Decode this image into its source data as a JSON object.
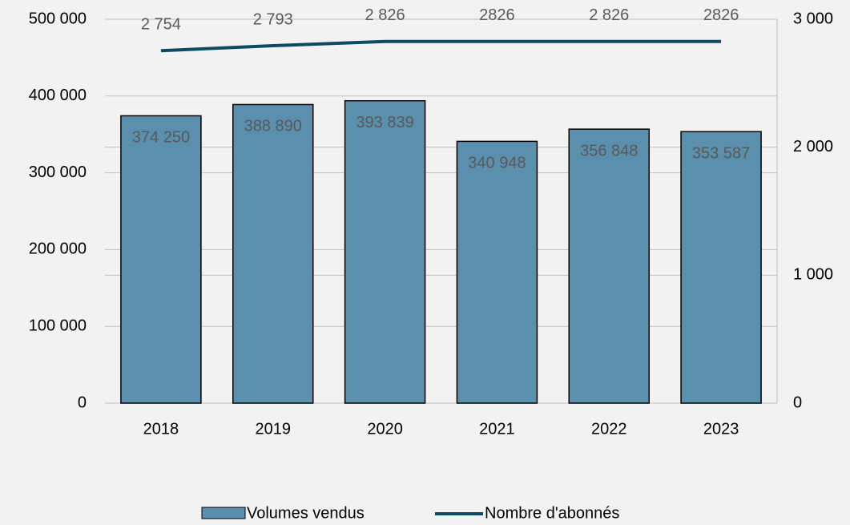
{
  "chart_data": {
    "type": "bar-line",
    "categories": [
      "2018",
      "2019",
      "2020",
      "2021",
      "2022",
      "2023"
    ],
    "series": [
      {
        "name": "Volumes vendus",
        "color": "#5a8fae",
        "axis": "y",
        "values": [
          374250,
          388890,
          393839,
          340948,
          356848,
          353587
        ],
        "value_labels": [
          "374 250",
          "388 890",
          "393 839",
          "340 948",
          "356 848",
          "353 587"
        ]
      },
      {
        "name": "Nombre d'abonnés",
        "color": "#0d4a63",
        "axis": "y2",
        "values": [
          2754,
          2793,
          2826,
          2826,
          2826,
          2826
        ],
        "value_labels": [
          "2 754",
          "2 793",
          "2 826",
          "2826",
          "2 826",
          "2826"
        ]
      }
    ],
    "ylim": [
      0,
      500000
    ],
    "yticks": [
      0,
      {
        "value": 100000,
        "label": "100 000"
      },
      {
        "value": 200000,
        "label": "200 000"
      },
      {
        "value": 300000,
        "label": "300 000"
      },
      {
        "value": 400000,
        "label": "400 000"
      },
      {
        "value": 500000,
        "label": "500 000"
      }
    ],
    "y2lim": [
      0,
      3000
    ],
    "y2ticks": [
      0,
      {
        "value": 1000,
        "label": "1 000"
      },
      {
        "value": 2000,
        "label": "2 000"
      },
      {
        "value": 3000,
        "label": "3 000"
      }
    ],
    "grid": true
  }
}
